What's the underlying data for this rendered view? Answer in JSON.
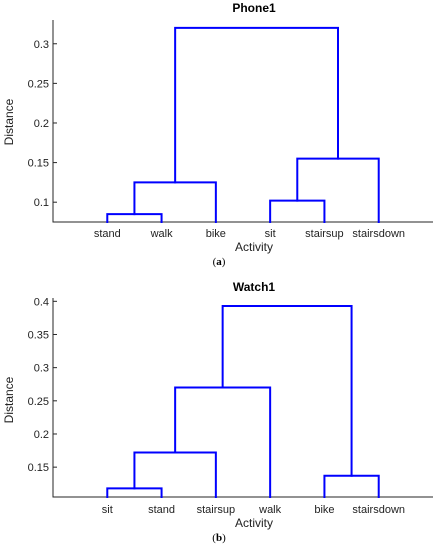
{
  "chart_data": [
    {
      "type": "dendrogram",
      "title": "Phone1",
      "xlabel": "Activity",
      "ylabel": "Distance",
      "caption_letter": "a",
      "ylim": [
        0.075,
        0.33
      ],
      "yticks": [
        0.1,
        0.15,
        0.2,
        0.25,
        0.3
      ],
      "ytick_labels": [
        "0.1",
        "0.15",
        "0.2",
        "0.25",
        "0.3"
      ],
      "leaves": [
        "stand",
        "walk",
        "bike",
        "sit",
        "stairsup",
        "stairsdown"
      ],
      "merges": [
        {
          "left": "stand",
          "right": "walk",
          "height": 0.085
        },
        {
          "left": "sit",
          "right": "stairsup",
          "height": 0.102
        },
        {
          "left": 0,
          "right": "bike",
          "height": 0.125
        },
        {
          "left": 1,
          "right": "stairsdown",
          "height": 0.155
        },
        {
          "left": 2,
          "right": 3,
          "height": 0.32
        }
      ],
      "line_color": "#0000ff"
    },
    {
      "type": "dendrogram",
      "title": "Watch1",
      "xlabel": "Activity",
      "ylabel": "Distance",
      "caption_letter": "b",
      "ylim": [
        0.105,
        0.405
      ],
      "yticks": [
        0.15,
        0.2,
        0.25,
        0.3,
        0.35,
        0.4
      ],
      "ytick_labels": [
        "0.15",
        "0.2",
        "0.25",
        "0.3",
        "0.35",
        "0.4"
      ],
      "leaves": [
        "sit",
        "stand",
        "stairsup",
        "walk",
        "bike",
        "stairsdown"
      ],
      "merges": [
        {
          "left": "sit",
          "right": "stand",
          "height": 0.118
        },
        {
          "left": "bike",
          "right": "stairsdown",
          "height": 0.137
        },
        {
          "left": 0,
          "right": "stairsup",
          "height": 0.172
        },
        {
          "left": 2,
          "right": "walk",
          "height": 0.27
        },
        {
          "left": 3,
          "right": 1,
          "height": 0.393
        }
      ],
      "line_color": "#0000ff"
    }
  ]
}
